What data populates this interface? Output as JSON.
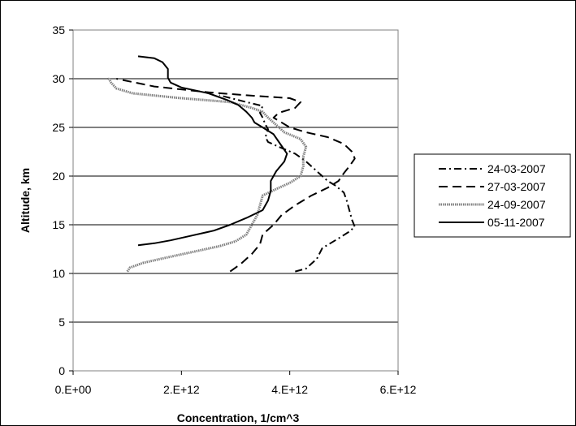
{
  "chart_data": {
    "type": "line",
    "title": "",
    "xlabel": "Concentration, 1/cm^3",
    "ylabel": "Altitude, km",
    "xlim": [
      0,
      6000000000000.0
    ],
    "ylim": [
      0,
      35
    ],
    "x_ticks": [
      0,
      2000000000000.0,
      4000000000000.0,
      6000000000000.0
    ],
    "x_tick_labels": [
      "0.E+00",
      "2.E+12",
      "4.E+12",
      "6.E+12"
    ],
    "y_ticks": [
      0,
      5,
      10,
      15,
      20,
      25,
      30,
      35
    ],
    "y_tick_labels": [
      "0",
      "5",
      "10",
      "15",
      "20",
      "25",
      "30",
      "35"
    ],
    "grid": "horizontal major gridlines",
    "legend_position": "right",
    "series": [
      {
        "name": "24-03-2007",
        "style": "dash-dot",
        "color": "#000000",
        "points": [
          [
            4100000000000.0,
            10.2
          ],
          [
            4300000000000.0,
            10.5
          ],
          [
            4500000000000.0,
            11.5
          ],
          [
            4600000000000.0,
            12.6
          ],
          [
            4750000000000.0,
            13.1
          ],
          [
            4900000000000.0,
            13.6
          ],
          [
            5100000000000.0,
            14.3
          ],
          [
            5200000000000.0,
            14.8
          ],
          [
            5150000000000.0,
            15.5
          ],
          [
            5100000000000.0,
            16.5
          ],
          [
            5050000000000.0,
            17.5
          ],
          [
            5000000000000.0,
            18.3
          ],
          [
            4850000000000.0,
            19.0
          ],
          [
            4700000000000.0,
            19.5
          ],
          [
            4500000000000.0,
            20.5
          ],
          [
            4300000000000.0,
            21.5
          ],
          [
            4100000000000.0,
            22.3
          ],
          [
            3800000000000.0,
            23.0
          ],
          [
            3600000000000.0,
            23.5
          ],
          [
            3550000000000.0,
            24.0
          ],
          [
            3600000000000.0,
            24.8
          ],
          [
            3550000000000.0,
            25.3
          ],
          [
            3500000000000.0,
            26.0
          ],
          [
            3450000000000.0,
            26.5
          ],
          [
            3500000000000.0,
            27.2
          ],
          [
            3200000000000.0,
            27.6
          ],
          [
            2700000000000.0,
            28.3
          ]
        ]
      },
      {
        "name": "27-03-2007",
        "style": "long-dash",
        "color": "#000000",
        "points": [
          [
            2900000000000.0,
            10.2
          ],
          [
            3100000000000.0,
            11.0
          ],
          [
            3300000000000.0,
            12.0
          ],
          [
            3450000000000.0,
            13.0
          ],
          [
            3500000000000.0,
            14.0
          ],
          [
            3700000000000.0,
            15.0
          ],
          [
            3850000000000.0,
            16.0
          ],
          [
            4100000000000.0,
            17.0
          ],
          [
            4400000000000.0,
            18.0
          ],
          [
            4700000000000.0,
            18.8
          ],
          [
            4900000000000.0,
            19.5
          ],
          [
            5000000000000.0,
            20.3
          ],
          [
            5100000000000.0,
            21.0
          ],
          [
            5200000000000.0,
            21.8
          ],
          [
            5150000000000.0,
            22.5
          ],
          [
            5000000000000.0,
            23.3
          ],
          [
            4700000000000.0,
            24.0
          ],
          [
            4300000000000.0,
            24.5
          ],
          [
            4000000000000.0,
            25.0
          ],
          [
            3700000000000.0,
            26.0
          ],
          [
            3800000000000.0,
            26.5
          ],
          [
            4100000000000.0,
            27.0
          ],
          [
            4200000000000.0,
            27.6
          ],
          [
            4000000000000.0,
            28.0
          ],
          [
            3200000000000.0,
            28.3
          ],
          [
            2500000000000.0,
            28.6
          ],
          [
            1500000000000.0,
            29.2
          ],
          [
            800000000000.0,
            30.0
          ]
        ]
      },
      {
        "name": "24-09-2007",
        "style": "dotted-thick",
        "color": "#7f7f7f",
        "points": [
          [
            1000000000000.0,
            10.2
          ],
          [
            1050000000000.0,
            10.6
          ],
          [
            1300000000000.0,
            11.1
          ],
          [
            1700000000000.0,
            11.6
          ],
          [
            2200000000000.0,
            12.2
          ],
          [
            2700000000000.0,
            12.8
          ],
          [
            3000000000000.0,
            13.3
          ],
          [
            3200000000000.0,
            14.0
          ],
          [
            3300000000000.0,
            15.0
          ],
          [
            3400000000000.0,
            16.0
          ],
          [
            3450000000000.0,
            17.0
          ],
          [
            3500000000000.0,
            18.0
          ],
          [
            3800000000000.0,
            18.8
          ],
          [
            4000000000000.0,
            19.3
          ],
          [
            4200000000000.0,
            20.0
          ],
          [
            4250000000000.0,
            21.0
          ],
          [
            4250000000000.0,
            22.0
          ],
          [
            4300000000000.0,
            23.0
          ],
          [
            4200000000000.0,
            23.8
          ],
          [
            3900000000000.0,
            24.5
          ],
          [
            3700000000000.0,
            25.5
          ],
          [
            3600000000000.0,
            26.0
          ],
          [
            3500000000000.0,
            26.6
          ],
          [
            3300000000000.0,
            27.0
          ],
          [
            2900000000000.0,
            27.6
          ],
          [
            2000000000000.0,
            28.0
          ],
          [
            1100000000000.0,
            28.5
          ],
          [
            800000000000.0,
            29.0
          ],
          [
            700000000000.0,
            29.6
          ],
          [
            650000000000.0,
            30.1
          ]
        ]
      },
      {
        "name": "05-11-2007",
        "style": "solid",
        "color": "#000000",
        "points": [
          [
            1200000000000.0,
            12.9
          ],
          [
            1500000000000.0,
            13.1
          ],
          [
            1800000000000.0,
            13.4
          ],
          [
            2200000000000.0,
            13.9
          ],
          [
            2600000000000.0,
            14.4
          ],
          [
            2900000000000.0,
            15.0
          ],
          [
            3200000000000.0,
            15.7
          ],
          [
            3500000000000.0,
            16.5
          ],
          [
            3600000000000.0,
            17.5
          ],
          [
            3650000000000.0,
            18.5
          ],
          [
            3650000000000.0,
            19.5
          ],
          [
            3750000000000.0,
            20.5
          ],
          [
            3900000000000.0,
            21.5
          ],
          [
            3950000000000.0,
            22.3
          ],
          [
            3800000000000.0,
            23.5
          ],
          [
            3700000000000.0,
            24.3
          ],
          [
            3500000000000.0,
            25.0
          ],
          [
            3350000000000.0,
            25.5
          ],
          [
            3300000000000.0,
            26.0
          ],
          [
            3200000000000.0,
            26.6
          ],
          [
            3050000000000.0,
            27.3
          ],
          [
            2850000000000.0,
            27.8
          ],
          [
            2500000000000.0,
            28.5
          ],
          [
            2000000000000.0,
            29.1
          ],
          [
            1800000000000.0,
            29.6
          ],
          [
            1750000000000.0,
            30.1
          ],
          [
            1750000000000.0,
            31.0
          ],
          [
            1650000000000.0,
            31.7
          ],
          [
            1500000000000.0,
            32.1
          ],
          [
            1200000000000.0,
            32.3
          ]
        ]
      }
    ]
  }
}
